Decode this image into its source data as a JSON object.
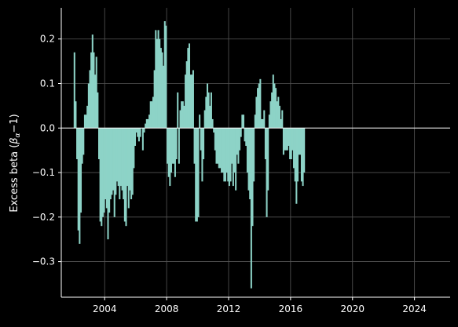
{
  "chart_data": {
    "type": "bar",
    "title": "",
    "xlabel": "",
    "ylabel": "Excess beta (β_α − 1)",
    "ylabel_parts": {
      "main": "Excess beta (",
      "beta": "β",
      "sub": "α",
      "tail": "−1)"
    },
    "xlim": [
      2001.2,
      2026.3
    ],
    "ylim": [
      -0.38,
      0.27
    ],
    "xticks": [
      2004,
      2008,
      2012,
      2016,
      2020,
      2024
    ],
    "xtick_labels": [
      "2004",
      "2008",
      "2012",
      "2016",
      "2020",
      "2024"
    ],
    "yticks": [
      -0.3,
      -0.2,
      -0.1,
      0.0,
      0.1,
      0.2
    ],
    "ytick_labels": [
      "−0.3",
      "−0.2",
      "−0.1",
      "0.0",
      "0.1",
      "0.2"
    ],
    "grid": true,
    "bar_color": "#8dd3c7",
    "background": "#000000",
    "axis_color": "#ffffff",
    "grid_color": "#555555",
    "x_start": 2002.0,
    "x_step": 0.0833,
    "values": [
      0.17,
      0.06,
      -0.07,
      -0.23,
      -0.26,
      -0.19,
      -0.08,
      -0.06,
      0.03,
      0.03,
      0.05,
      0.1,
      0.13,
      0.17,
      0.21,
      0.17,
      0.12,
      0.16,
      0.08,
      -0.07,
      -0.21,
      -0.22,
      -0.2,
      -0.19,
      -0.16,
      -0.18,
      -0.25,
      -0.19,
      -0.16,
      -0.15,
      -0.14,
      -0.2,
      -0.15,
      -0.12,
      -0.13,
      -0.16,
      -0.13,
      -0.14,
      -0.16,
      -0.21,
      -0.22,
      -0.13,
      -0.18,
      -0.14,
      -0.16,
      -0.15,
      -0.09,
      -0.04,
      -0.01,
      -0.02,
      -0.03,
      -0.02,
      0.0,
      -0.05,
      -0.01,
      0.01,
      0.02,
      0.02,
      0.03,
      0.06,
      0.06,
      0.07,
      0.13,
      0.22,
      0.2,
      0.22,
      0.2,
      0.18,
      0.17,
      0.14,
      0.24,
      0.23,
      -0.08,
      -0.11,
      -0.13,
      -0.1,
      -0.08,
      -0.08,
      -0.11,
      -0.07,
      0.08,
      -0.08,
      0.04,
      0.06,
      0.06,
      0.05,
      0.12,
      0.15,
      0.18,
      0.19,
      0.12,
      0.12,
      0.13,
      -0.08,
      -0.21,
      -0.21,
      -0.2,
      0.03,
      -0.05,
      -0.12,
      -0.07,
      0.04,
      0.07,
      0.1,
      0.08,
      0.05,
      0.08,
      0.02,
      -0.01,
      -0.05,
      -0.08,
      -0.08,
      -0.09,
      -0.09,
      -0.1,
      -0.1,
      -0.12,
      -0.12,
      -0.1,
      -0.12,
      -0.13,
      -0.12,
      -0.08,
      -0.13,
      -0.1,
      -0.14,
      -0.06,
      -0.08,
      -0.05,
      -0.02,
      0.03,
      0.03,
      -0.03,
      -0.04,
      -0.1,
      -0.14,
      -0.16,
      -0.36,
      -0.22,
      -0.12,
      0.03,
      0.07,
      0.09,
      0.1,
      0.11,
      0.02,
      0.02,
      0.04,
      -0.07,
      -0.2,
      -0.14,
      0.03,
      0.06,
      0.08,
      0.12,
      0.1,
      0.09,
      0.06,
      0.07,
      0.05,
      0.02,
      0.04,
      -0.06,
      -0.05,
      -0.05,
      -0.05,
      -0.04,
      -0.07,
      -0.07,
      -0.05,
      -0.09,
      -0.12,
      -0.17,
      -0.12,
      -0.06,
      -0.06,
      -0.12,
      -0.13,
      -0.1
    ]
  }
}
